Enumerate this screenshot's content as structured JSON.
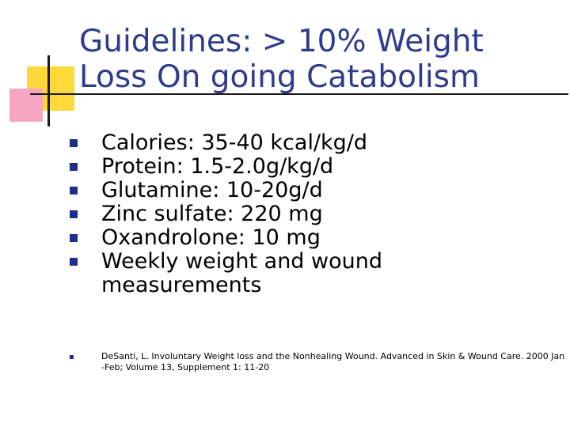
{
  "title": {
    "line1": "Guidelines: > 10% Weight",
    "line2": "Loss On going Catabolism"
  },
  "bullets": [
    {
      "lines": [
        "Calories: 35-40 kcal/kg/d"
      ]
    },
    {
      "lines": [
        "Protein: 1.5-2.0g/kg/d"
      ]
    },
    {
      "lines": [
        "Glutamine: 10-20g/d"
      ]
    },
    {
      "lines": [
        "Zinc sulfate: 220 mg"
      ]
    },
    {
      "lines": [
        "Oxandrolone: 10 mg"
      ]
    },
    {
      "lines": [
        "Weekly weight and wound",
        "measurements"
      ]
    }
  ],
  "reference": {
    "line1": "DeSanti, L. Involuntary Weight loss and the Nonhealing Wound. Advanced in Skin & Wound Care. 2000 Jan",
    "line2": "-Feb; Volume 13, Supplement 1: 11-20"
  },
  "colors": {
    "title": "#2f3b8c",
    "bullet_marker": "#1f2e8a",
    "accent_yellow": "#ffd93a",
    "accent_pink": "#f7a6c1"
  }
}
